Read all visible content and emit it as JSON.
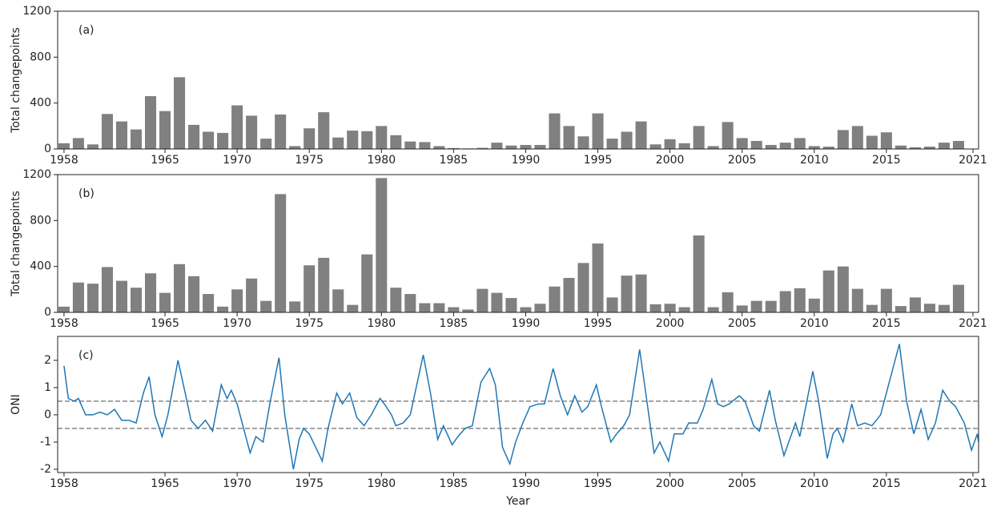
{
  "chart_data": [
    {
      "type": "bar",
      "panel_label": "(a)",
      "y_label": "Total changepoints",
      "color": "#808080",
      "x": [
        1958,
        1959,
        1960,
        1961,
        1962,
        1963,
        1964,
        1965,
        1966,
        1967,
        1968,
        1969,
        1970,
        1971,
        1972,
        1973,
        1974,
        1975,
        1976,
        1977,
        1978,
        1979,
        1980,
        1981,
        1982,
        1983,
        1984,
        1985,
        1986,
        1987,
        1988,
        1989,
        1990,
        1991,
        1992,
        1993,
        1994,
        1995,
        1996,
        1997,
        1998,
        1999,
        2000,
        2001,
        2002,
        2003,
        2004,
        2005,
        2006,
        2007,
        2008,
        2009,
        2010,
        2011,
        2012,
        2013,
        2014,
        2015,
        2016,
        2017,
        2018,
        2019,
        2020
      ],
      "values": [
        50,
        95,
        40,
        305,
        240,
        170,
        460,
        330,
        625,
        210,
        150,
        140,
        380,
        290,
        90,
        300,
        25,
        180,
        320,
        100,
        160,
        155,
        200,
        120,
        65,
        60,
        25,
        8,
        5,
        10,
        55,
        30,
        35,
        35,
        310,
        200,
        110,
        310,
        90,
        150,
        240,
        40,
        85,
        50,
        200,
        25,
        235,
        95,
        70,
        35,
        55,
        95,
        25,
        20,
        165,
        200,
        115,
        145,
        30,
        15,
        20,
        55,
        70
      ],
      "xlim": [
        1957.56,
        2021.39
      ],
      "ylim": [
        0,
        1200
      ],
      "xticks": [
        1958,
        1965,
        1970,
        1975,
        1980,
        1985,
        1990,
        1995,
        2000,
        2005,
        2010,
        2015,
        2021
      ],
      "yticks": [
        0,
        400,
        800,
        1200
      ]
    },
    {
      "type": "bar",
      "panel_label": "(b)",
      "y_label": "Total changepoints",
      "color": "#808080",
      "x": [
        1958,
        1959,
        1960,
        1961,
        1962,
        1963,
        1964,
        1965,
        1966,
        1967,
        1968,
        1969,
        1970,
        1971,
        1972,
        1973,
        1974,
        1975,
        1976,
        1977,
        1978,
        1979,
        1980,
        1981,
        1982,
        1983,
        1984,
        1985,
        1986,
        1987,
        1988,
        1989,
        1990,
        1991,
        1992,
        1993,
        1994,
        1995,
        1996,
        1997,
        1998,
        1999,
        2000,
        2001,
        2002,
        2003,
        2004,
        2005,
        2006,
        2007,
        2008,
        2009,
        2010,
        2011,
        2012,
        2013,
        2014,
        2015,
        2016,
        2017,
        2018,
        2019,
        2020
      ],
      "values": [
        50,
        260,
        250,
        395,
        275,
        215,
        340,
        170,
        420,
        315,
        160,
        50,
        200,
        295,
        100,
        1030,
        95,
        410,
        475,
        200,
        65,
        505,
        1170,
        215,
        160,
        80,
        80,
        45,
        25,
        205,
        170,
        125,
        45,
        75,
        225,
        300,
        430,
        600,
        130,
        320,
        330,
        70,
        75,
        45,
        670,
        45,
        175,
        60,
        100,
        100,
        185,
        210,
        120,
        365,
        400,
        205,
        65,
        205,
        55,
        130,
        75,
        65,
        240
      ],
      "xlim": [
        1957.56,
        2021.39
      ],
      "ylim": [
        0,
        1200
      ],
      "xticks": [
        1958,
        1965,
        1970,
        1975,
        1980,
        1985,
        1990,
        1995,
        2000,
        2005,
        2010,
        2015,
        2021
      ],
      "yticks": [
        0,
        400,
        800,
        1200
      ]
    },
    {
      "type": "line",
      "panel_label": "(c)",
      "y_label": "ONI",
      "x_label": "Year",
      "color": "#1f77b4",
      "reference_color": "#888888",
      "x": [
        1958.0,
        1958.3,
        1958.7,
        1959.0,
        1959.5,
        1960.0,
        1960.5,
        1961.0,
        1961.5,
        1962.0,
        1962.5,
        1963.0,
        1963.5,
        1963.9,
        1964.3,
        1964.8,
        1965.2,
        1965.9,
        1966.4,
        1966.8,
        1967.3,
        1967.8,
        1968.3,
        1968.9,
        1969.3,
        1969.6,
        1970.0,
        1970.5,
        1970.9,
        1971.3,
        1971.8,
        1972.3,
        1972.9,
        1973.3,
        1973.9,
        1974.3,
        1974.6,
        1975.0,
        1975.9,
        1976.3,
        1976.9,
        1977.3,
        1977.8,
        1978.3,
        1978.8,
        1979.3,
        1979.9,
        1980.2,
        1980.7,
        1981.0,
        1981.5,
        1982.0,
        1982.9,
        1983.4,
        1983.9,
        1984.3,
        1984.9,
        1985.3,
        1985.8,
        1986.3,
        1986.9,
        1987.5,
        1987.9,
        1988.4,
        1988.9,
        1989.3,
        1989.8,
        1990.3,
        1990.9,
        1991.3,
        1991.9,
        1992.4,
        1992.9,
        1993.4,
        1993.9,
        1994.3,
        1994.9,
        1995.3,
        1995.9,
        1996.3,
        1996.8,
        1997.2,
        1997.9,
        1998.4,
        1998.9,
        1999.3,
        1999.9,
        2000.3,
        2000.9,
        2001.3,
        2001.9,
        2002.3,
        2002.9,
        2003.3,
        2003.7,
        2004.1,
        2004.8,
        2005.2,
        2005.8,
        2006.2,
        2006.9,
        2007.3,
        2007.9,
        2008.3,
        2008.7,
        2009.0,
        2009.9,
        2010.3,
        2010.9,
        2011.3,
        2011.6,
        2012.0,
        2012.6,
        2013.0,
        2013.5,
        2014.0,
        2014.6,
        2014.9,
        2015.9,
        2016.4,
        2016.9,
        2017.4,
        2017.9,
        2018.4,
        2018.9,
        2019.4,
        2019.8,
        2020.4,
        2020.9,
        2021.3,
        2021.39
      ],
      "values": [
        1.8,
        0.6,
        0.5,
        0.6,
        0.0,
        0.0,
        0.1,
        0.0,
        0.2,
        -0.2,
        -0.2,
        -0.3,
        0.8,
        1.4,
        0.0,
        -0.8,
        0.0,
        2.0,
        0.8,
        -0.2,
        -0.5,
        -0.2,
        -0.6,
        1.1,
        0.6,
        0.9,
        0.4,
        -0.6,
        -1.4,
        -0.8,
        -1.0,
        0.5,
        2.1,
        0.0,
        -2.0,
        -0.9,
        -0.5,
        -0.7,
        -1.7,
        -0.5,
        0.8,
        0.4,
        0.8,
        -0.1,
        -0.4,
        0.0,
        0.6,
        0.4,
        0.0,
        -0.4,
        -0.3,
        0.0,
        2.2,
        0.8,
        -0.9,
        -0.4,
        -1.1,
        -0.8,
        -0.5,
        -0.4,
        1.2,
        1.7,
        1.1,
        -1.2,
        -1.8,
        -1.0,
        -0.3,
        0.3,
        0.4,
        0.4,
        1.7,
        0.7,
        0.0,
        0.7,
        0.1,
        0.3,
        1.1,
        0.2,
        -1.0,
        -0.7,
        -0.4,
        0.0,
        2.4,
        0.5,
        -1.4,
        -1.0,
        -1.7,
        -0.7,
        -0.7,
        -0.3,
        -0.3,
        0.2,
        1.3,
        0.4,
        0.3,
        0.4,
        0.7,
        0.5,
        -0.4,
        -0.6,
        0.9,
        -0.2,
        -1.5,
        -0.9,
        -0.3,
        -0.8,
        1.6,
        0.5,
        -1.6,
        -0.7,
        -0.5,
        -1.0,
        0.4,
        -0.4,
        -0.3,
        -0.4,
        0.0,
        0.6,
        2.6,
        0.5,
        -0.7,
        0.2,
        -0.9,
        -0.3,
        0.9,
        0.5,
        0.3,
        -0.3,
        -1.3,
        -0.7,
        -1.0
      ],
      "reference_lines": [
        0.5,
        -0.5
      ],
      "xlim": [
        1957.56,
        2021.39
      ],
      "ylim": [
        -2.12,
        2.88
      ],
      "xticks": [
        1958,
        1965,
        1970,
        1975,
        1980,
        1985,
        1990,
        1995,
        2000,
        2005,
        2010,
        2015,
        2021
      ],
      "yticks": [
        -2,
        -1,
        0,
        1,
        2
      ]
    }
  ]
}
